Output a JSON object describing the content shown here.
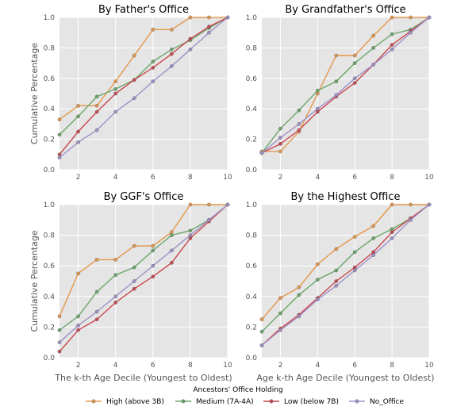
{
  "chart_data": [
    {
      "type": "line",
      "title": "By Father's Office",
      "xlabel": "",
      "ylabel": "Cumulative Percentage",
      "x": [
        1,
        2,
        3,
        4,
        5,
        6,
        7,
        8,
        9,
        10
      ],
      "xlim": [
        1,
        10
      ],
      "ylim": [
        0,
        1.0
      ],
      "xticks": [
        "2",
        "4",
        "6",
        "8",
        "10"
      ],
      "yticks": [
        "0.0",
        "0.2",
        "0.4",
        "0.6",
        "0.8",
        "1.0"
      ],
      "grid": true,
      "series": [
        {
          "name": "High (above 3B)",
          "values": [
            0.33,
            0.42,
            0.42,
            0.58,
            0.75,
            0.92,
            0.92,
            1.0,
            1.0,
            1.0
          ]
        },
        {
          "name": "Medium (7A-4A)",
          "values": [
            0.23,
            0.35,
            0.48,
            0.53,
            0.59,
            0.71,
            0.79,
            0.85,
            0.93,
            1.0
          ]
        },
        {
          "name": "Low (below 7B)",
          "values": [
            0.1,
            0.25,
            0.38,
            0.5,
            0.59,
            0.67,
            0.76,
            0.86,
            0.94,
            1.0
          ]
        },
        {
          "name": "No_Office",
          "values": [
            0.08,
            0.18,
            0.26,
            0.38,
            0.47,
            0.58,
            0.68,
            0.79,
            0.9,
            1.0
          ]
        }
      ]
    },
    {
      "type": "line",
      "title": "By Grandfather's Office",
      "xlabel": "",
      "ylabel": "",
      "x": [
        1,
        2,
        3,
        4,
        5,
        6,
        7,
        8,
        9,
        10
      ],
      "xlim": [
        1,
        10
      ],
      "ylim": [
        0,
        1.0
      ],
      "xticks": [
        "2",
        "4",
        "6",
        "8",
        "10"
      ],
      "yticks": [
        "0.0",
        "0.2",
        "0.4",
        "0.6",
        "0.8",
        "1.0"
      ],
      "grid": true,
      "series": [
        {
          "name": "High (above 3B)",
          "values": [
            0.12,
            0.12,
            0.25,
            0.5,
            0.75,
            0.75,
            0.88,
            1.0,
            1.0,
            1.0
          ]
        },
        {
          "name": "Medium (7A-4A)",
          "values": [
            0.11,
            0.27,
            0.39,
            0.52,
            0.58,
            0.7,
            0.8,
            0.89,
            0.92,
            1.0
          ]
        },
        {
          "name": "Low (below 7B)",
          "values": [
            0.11,
            0.17,
            0.26,
            0.38,
            0.48,
            0.57,
            0.69,
            0.82,
            0.91,
            1.0
          ]
        },
        {
          "name": "No_Office",
          "values": [
            0.11,
            0.21,
            0.3,
            0.4,
            0.49,
            0.6,
            0.69,
            0.79,
            0.9,
            1.0
          ]
        }
      ]
    },
    {
      "type": "line",
      "title": "By GGF's Office",
      "xlabel": "The k-th Age Decile (Youngest to Oldest)",
      "ylabel": "Cumulative Percentage",
      "x": [
        1,
        2,
        3,
        4,
        5,
        6,
        7,
        8,
        9,
        10
      ],
      "xlim": [
        1,
        10
      ],
      "ylim": [
        0,
        1.0
      ],
      "xticks": [
        "2",
        "4",
        "6",
        "8",
        "10"
      ],
      "yticks": [
        "0.0",
        "0.2",
        "0.4",
        "0.6",
        "0.8",
        "1.0"
      ],
      "grid": true,
      "series": [
        {
          "name": "High (above 3B)",
          "values": [
            0.27,
            0.55,
            0.64,
            0.64,
            0.73,
            0.73,
            0.82,
            1.0,
            1.0,
            1.0
          ]
        },
        {
          "name": "Medium (7A-4A)",
          "values": [
            0.18,
            0.27,
            0.43,
            0.54,
            0.59,
            0.7,
            0.8,
            0.83,
            0.9,
            1.0
          ]
        },
        {
          "name": "Low (below 7B)",
          "values": [
            0.04,
            0.18,
            0.25,
            0.36,
            0.45,
            0.53,
            0.62,
            0.78,
            0.89,
            1.0
          ]
        },
        {
          "name": "No_Office",
          "values": [
            0.1,
            0.21,
            0.3,
            0.4,
            0.5,
            0.6,
            0.7,
            0.8,
            0.9,
            1.0
          ]
        }
      ]
    },
    {
      "type": "line",
      "title": "By the Highest Office",
      "xlabel": "Age k-th Age Decile (Youngest to Oldest)",
      "ylabel": "",
      "x": [
        1,
        2,
        3,
        4,
        5,
        6,
        7,
        8,
        9,
        10
      ],
      "xlim": [
        1,
        10
      ],
      "ylim": [
        0,
        1.0
      ],
      "xticks": [
        "2",
        "4",
        "6",
        "8",
        "10"
      ],
      "yticks": [
        "0.0",
        "0.2",
        "0.4",
        "0.6",
        "0.8",
        "1.0"
      ],
      "grid": true,
      "series": [
        {
          "name": "High (above 3B)",
          "values": [
            0.25,
            0.39,
            0.46,
            0.61,
            0.71,
            0.79,
            0.86,
            1.0,
            1.0,
            1.0
          ]
        },
        {
          "name": "Medium (7A-4A)",
          "values": [
            0.17,
            0.29,
            0.41,
            0.51,
            0.57,
            0.69,
            0.78,
            0.84,
            0.91,
            1.0
          ]
        },
        {
          "name": "Low (below 7B)",
          "values": [
            0.08,
            0.19,
            0.28,
            0.39,
            0.5,
            0.59,
            0.69,
            0.82,
            0.91,
            1.0
          ]
        },
        {
          "name": "No_Office",
          "values": [
            0.08,
            0.18,
            0.27,
            0.38,
            0.47,
            0.57,
            0.67,
            0.78,
            0.9,
            1.0
          ]
        }
      ]
    }
  ],
  "legend": {
    "title": "Ancestors' Office Holding",
    "placement": "bottom"
  },
  "colors": {
    "High (above 3B)": "#e5974a",
    "Medium (7A-4A)": "#6aa56a",
    "Low (below 7B)": "#c9474f",
    "No_Office": "#a090c8",
    "plot_background": "#e5e5e5",
    "grid": "#ffffff"
  }
}
